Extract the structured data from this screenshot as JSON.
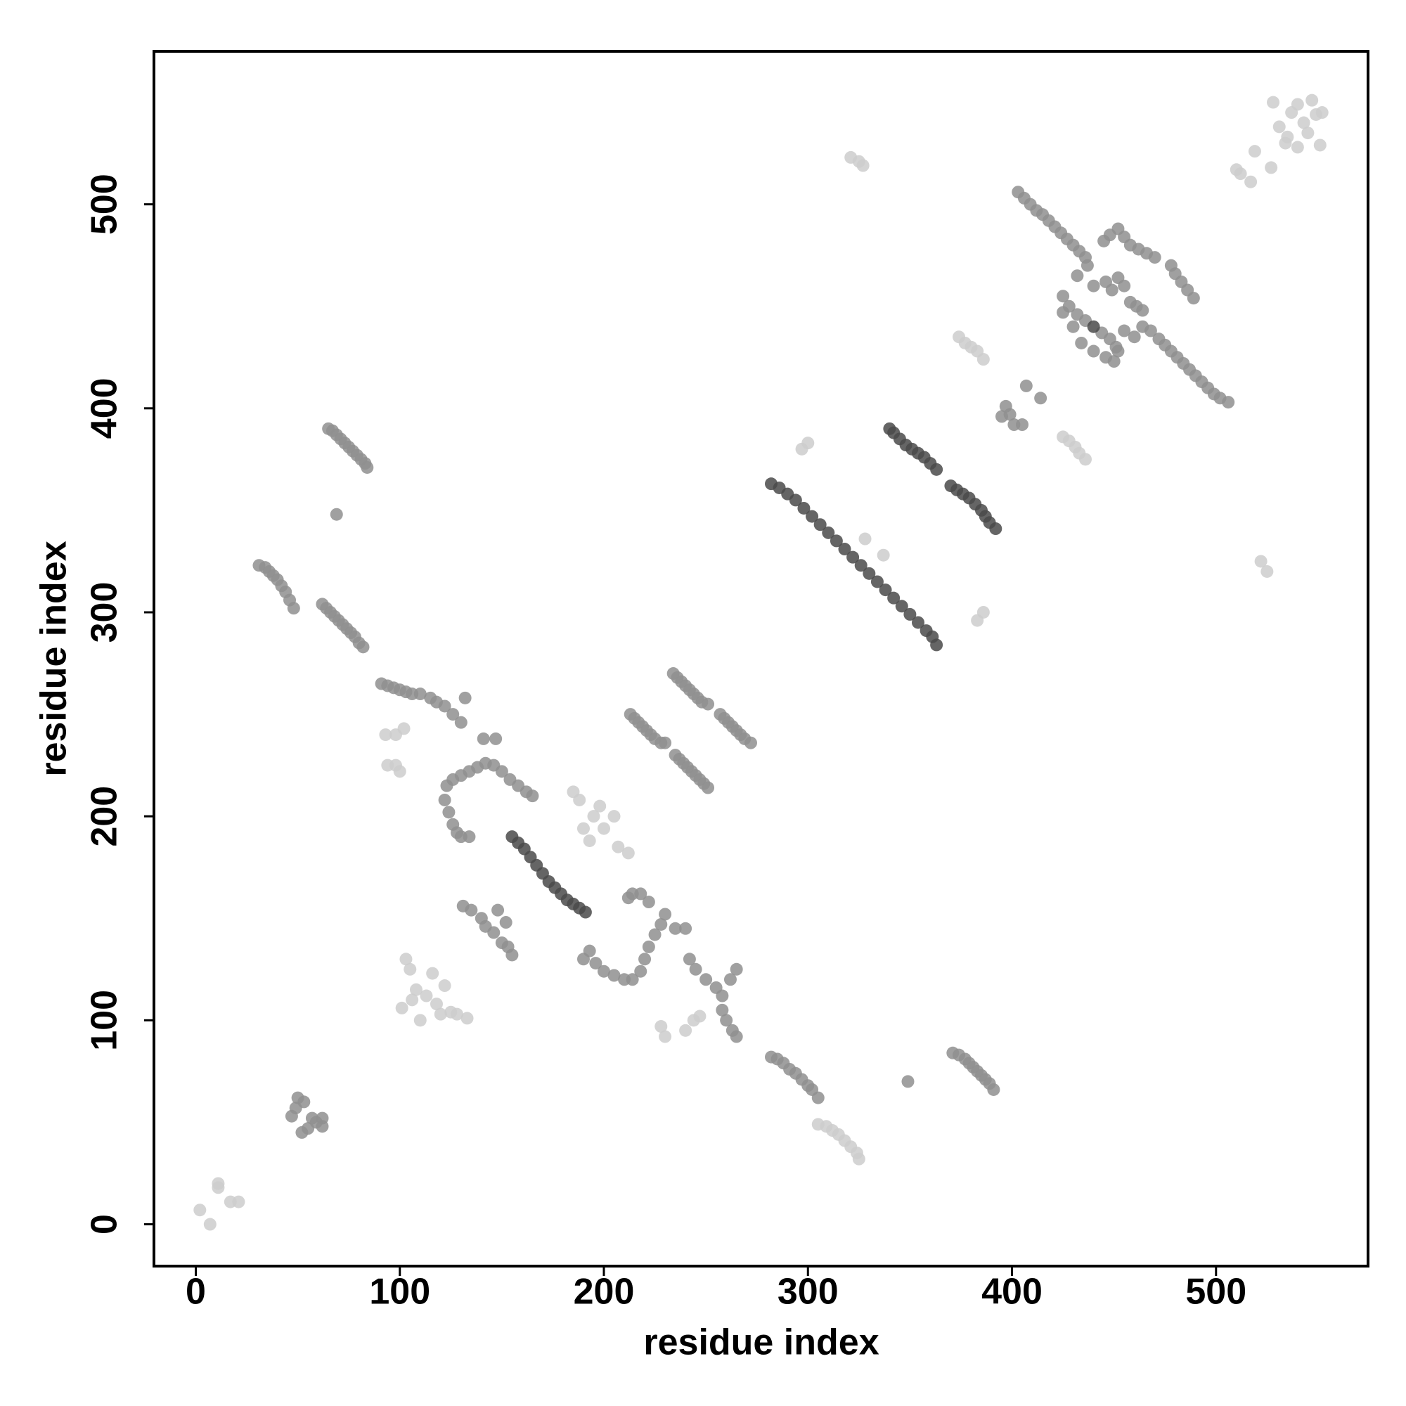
{
  "chart_data": {
    "type": "scatter",
    "xlabel": "residue index",
    "ylabel": "residue index",
    "xlim": [
      -20.5,
      574.5
    ],
    "ylim": [
      -20.5,
      575
    ],
    "xticks": [
      0,
      100,
      200,
      300,
      400,
      500
    ],
    "yticks": [
      0,
      100,
      200,
      300,
      400,
      500
    ],
    "grid": false,
    "series": [
      {
        "color": "#cccccc",
        "x": [
          2,
          7,
          11,
          11,
          17,
          21,
          101,
          103,
          105,
          108,
          110,
          113,
          116,
          118,
          120,
          122,
          125,
          128,
          133,
          106,
          185,
          188,
          190,
          193,
          195,
          198,
          200,
          205,
          207,
          212,
          228,
          230,
          240,
          244,
          247,
          305,
          309,
          312,
          315,
          318,
          321,
          324,
          325,
          374,
          377,
          380,
          383,
          386,
          425,
          428,
          431,
          433,
          436,
          321,
          325,
          327,
          510,
          512,
          517,
          519,
          522,
          525,
          527,
          528,
          531,
          534,
          537,
          540,
          543,
          545,
          547,
          549,
          551,
          552,
          535,
          540,
          94,
          98,
          100,
          93,
          98,
          102,
          297,
          300,
          328,
          337,
          383,
          386
        ],
        "y": [
          7,
          0,
          18,
          20,
          11,
          11,
          106,
          130,
          125,
          115,
          100,
          112,
          123,
          108,
          103,
          117,
          104,
          103,
          101,
          110,
          212,
          208,
          194,
          188,
          200,
          205,
          194,
          200,
          185,
          182,
          97,
          92,
          95,
          100,
          102,
          49,
          48,
          46,
          44,
          41,
          38,
          35,
          32,
          435,
          432,
          430,
          428,
          424,
          386,
          384,
          381,
          378,
          375,
          523,
          521,
          519,
          517,
          515,
          511,
          526,
          325,
          320,
          518,
          550,
          538,
          530,
          545,
          549,
          540,
          535,
          551,
          544,
          529,
          545,
          533,
          528,
          225,
          225,
          222,
          240,
          240,
          243,
          380,
          383,
          336,
          328,
          296,
          300
        ]
      },
      {
        "color": "#8f8f8f",
        "x": [
          47,
          49,
          50,
          52,
          53,
          55,
          57,
          59,
          62,
          62,
          65,
          67,
          69,
          71,
          73,
          75,
          77,
          79,
          81,
          83,
          84,
          69,
          31,
          34,
          36,
          38,
          40,
          42,
          44,
          46,
          48,
          62,
          64,
          66,
          68,
          70,
          72,
          74,
          76,
          78,
          80,
          82,
          91,
          94,
          97,
          100,
          103,
          106,
          110,
          115,
          118,
          122,
          126,
          130,
          132,
          123,
          126,
          130,
          134,
          138,
          142,
          146,
          150,
          154,
          158,
          162,
          165,
          122,
          124,
          126,
          128,
          130,
          134,
          141,
          147,
          131,
          135,
          140,
          142,
          146,
          148,
          150,
          152,
          155,
          153,
          190,
          193,
          196,
          200,
          205,
          210,
          214,
          218,
          220,
          222,
          225,
          228,
          230,
          222,
          218,
          214,
          212,
          213,
          215,
          217,
          219,
          221,
          223,
          225,
          228,
          230,
          234,
          236,
          238,
          240,
          242,
          244,
          246,
          248,
          251,
          235,
          237,
          239,
          241,
          243,
          245,
          247,
          249,
          251,
          257,
          259,
          261,
          263,
          265,
          267,
          269,
          272,
          235,
          240,
          242,
          245,
          250,
          255,
          258,
          262,
          265,
          258,
          260,
          263,
          265,
          282,
          285,
          288,
          291,
          294,
          297,
          300,
          302,
          305,
          349,
          371,
          374,
          377,
          379,
          381,
          383,
          385,
          387,
          389,
          391,
          395,
          397,
          399,
          401,
          405,
          407,
          414,
          403,
          406,
          409,
          412,
          415,
          418,
          421,
          424,
          427,
          430,
          433,
          436,
          445,
          448,
          452,
          455,
          458,
          462,
          466,
          470,
          478,
          480,
          483,
          486,
          489,
          425,
          428,
          432,
          436,
          444,
          448,
          451,
          446,
          450,
          452,
          425,
          430,
          434,
          440,
          446,
          449,
          452,
          455,
          458,
          461,
          464,
          455,
          460,
          464,
          437,
          432,
          440,
          468,
          472,
          475,
          478,
          481,
          484,
          487,
          490,
          493,
          496,
          499,
          502,
          506
        ],
        "y": [
          53,
          57,
          62,
          45,
          60,
          47,
          52,
          50,
          52,
          48,
          390,
          389,
          387,
          385,
          383,
          381,
          379,
          377,
          375,
          373,
          371,
          348,
          323,
          322,
          320,
          318,
          316,
          313,
          310,
          306,
          302,
          304,
          302,
          300,
          298,
          296,
          294,
          292,
          290,
          288,
          285,
          283,
          265,
          264,
          263,
          262,
          261,
          260,
          260,
          258,
          256,
          254,
          250,
          246,
          258,
          215,
          218,
          220,
          222,
          224,
          226,
          225,
          222,
          218,
          215,
          212,
          210,
          208,
          202,
          196,
          192,
          190,
          190,
          238,
          238,
          156,
          154,
          150,
          146,
          143,
          154,
          138,
          148,
          132,
          136,
          130,
          134,
          128,
          124,
          122,
          120,
          120,
          124,
          130,
          136,
          142,
          147,
          152,
          158,
          162,
          162,
          160,
          250,
          248,
          246,
          244,
          242,
          240,
          238,
          236,
          236,
          270,
          268,
          266,
          264,
          262,
          260,
          258,
          256,
          255,
          230,
          228,
          226,
          224,
          222,
          220,
          218,
          216,
          214,
          250,
          248,
          246,
          244,
          242,
          240,
          238,
          236,
          145,
          145,
          130,
          125,
          120,
          116,
          112,
          120,
          125,
          105,
          100,
          95,
          92,
          82,
          81,
          79,
          76,
          74,
          71,
          68,
          66,
          62,
          70,
          84,
          83,
          81,
          79,
          77,
          75,
          73,
          71,
          69,
          66,
          396,
          401,
          397,
          392,
          392,
          411,
          405,
          506,
          503,
          500,
          497,
          495,
          492,
          489,
          486,
          483,
          480,
          477,
          474,
          482,
          485,
          488,
          484,
          480,
          478,
          476,
          474,
          470,
          466,
          462,
          458,
          454,
          455,
          450,
          446,
          443,
          437,
          434,
          430,
          425,
          423,
          428,
          447,
          440,
          432,
          428,
          462,
          458,
          464,
          460,
          452,
          450,
          448,
          438,
          435,
          440,
          470,
          465,
          460,
          438,
          434,
          431,
          428,
          425,
          422,
          419,
          416,
          413,
          410,
          407,
          405,
          403
        ]
      },
      {
        "color": "#4a4a4a",
        "x": [
          155,
          158,
          161,
          164,
          167,
          170,
          173,
          176,
          179,
          182,
          185,
          188,
          191,
          282,
          286,
          290,
          294,
          298,
          302,
          306,
          310,
          314,
          318,
          322,
          326,
          330,
          334,
          338,
          342,
          346,
          350,
          354,
          358,
          361,
          363,
          340,
          342,
          345,
          348,
          351,
          354,
          357,
          360,
          363,
          370,
          373,
          376,
          379,
          382,
          385,
          387,
          389,
          392,
          440
        ],
        "y": [
          190,
          187,
          184,
          180,
          176,
          172,
          168,
          165,
          162,
          159,
          157,
          155,
          153,
          363,
          361,
          358,
          355,
          351,
          347,
          343,
          339,
          335,
          331,
          327,
          323,
          319,
          315,
          311,
          307,
          303,
          299,
          295,
          291,
          288,
          284,
          390,
          388,
          385,
          382,
          380,
          378,
          376,
          373,
          370,
          362,
          360,
          358,
          356,
          353,
          350,
          347,
          344,
          341,
          440
        ]
      }
    ]
  }
}
